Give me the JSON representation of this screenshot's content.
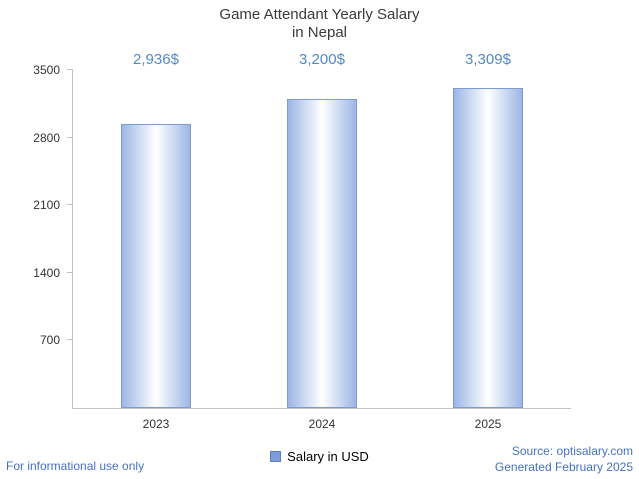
{
  "title": {
    "line1": "Game Attendant Yearly Salary",
    "line2": "in Nepal"
  },
  "chart_data": {
    "type": "bar",
    "title": "Game Attendant Yearly Salary in Nepal",
    "categories": [
      "2023",
      "2024",
      "2025"
    ],
    "values": [
      2936,
      3200,
      3309
    ],
    "value_labels": [
      "2,936$",
      "3,200$",
      "3,309$"
    ],
    "series_name": "Salary in USD",
    "xlabel": "",
    "ylabel": "",
    "ylim": [
      0,
      3500
    ],
    "yticks": [
      700,
      1400,
      2100,
      2800,
      3500
    ],
    "grid": false,
    "legend_position": "bottom"
  },
  "legend": {
    "label": "Salary in USD"
  },
  "footer": {
    "left": "For informational use only",
    "source": "Source: optisalary.com",
    "generated": "Generated February 2025"
  },
  "colors": {
    "bar_edge": "#9cb6e4",
    "bar_center": "#ffffff",
    "bar_border": "#7e9bd0",
    "value_label": "#5389c6",
    "legend_swatch": "#7d9cd8",
    "legend_swatch_border": "#5a7fc0",
    "footer_link": "#4472c4",
    "axis": "#c2c2c2",
    "text": "#333333"
  }
}
